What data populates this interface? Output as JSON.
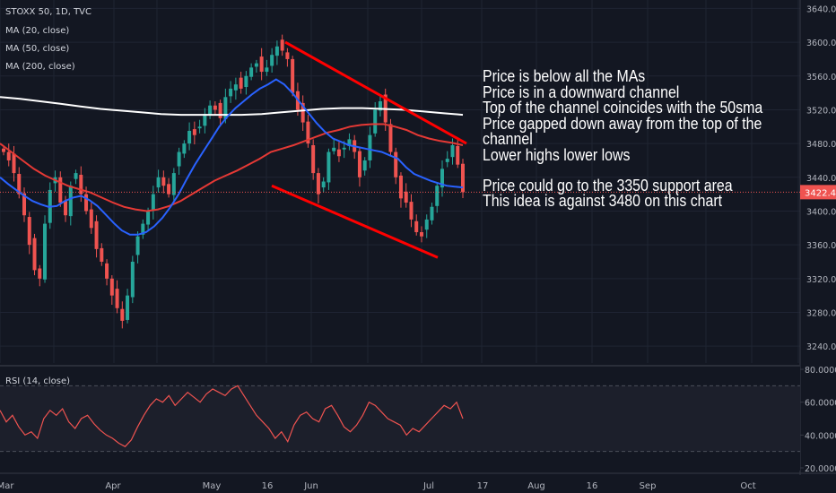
{
  "header": {
    "symbol_line": "STOXX 50, 1D, TVC",
    "ma_labels": [
      "MA (20, close)",
      "MA (50, close)",
      "MA (200, close)"
    ],
    "rsi_label": "RSI (14, close)"
  },
  "annotation": {
    "lines": [
      "Price is below all the MAs",
      "Price is in a downward channel",
      "Top of the channel coincides with the 50sma",
      "Price gapped down away from the top of the",
      "channel",
      "Lower highs lower lows",
      "",
      "Price could go to the 3350 support area",
      "This idea is against 3480 on this chart"
    ]
  },
  "colors": {
    "background": "#131722",
    "up_candle": "#26a69a",
    "down_candle": "#ef5350",
    "ma20": "#2962ff",
    "ma50": "#e53935",
    "ma200": "#ffffff",
    "channel": "#ff0000",
    "rsi_line": "#ef5350",
    "price_tag": "#ef5350"
  },
  "chart_data": [
    {
      "type": "candlestick",
      "title": "STOXX 50, 1D, TVC",
      "ylim": [
        3220,
        3650
      ],
      "y_ticks": [
        "3640.0",
        "3600.0",
        "3560.0",
        "3520.0",
        "3480.0",
        "3440.0",
        "3400.0",
        "3360.0",
        "3320.0",
        "3280.0",
        "3240.0"
      ],
      "x_ticks": [
        "Mar",
        "Apr",
        "May",
        "16",
        "Jun",
        "Jul",
        "17",
        "Aug",
        "16",
        "Sep",
        "Oct"
      ],
      "last_price_label": "3422.4",
      "last_price": 3422.4,
      "close_path": [
        3470,
        3460,
        3445,
        3420,
        3395,
        3360,
        3330,
        3320,
        3385,
        3425,
        3440,
        3410,
        3395,
        3430,
        3445,
        3420,
        3400,
        3380,
        3355,
        3340,
        3320,
        3300,
        3285,
        3270,
        3300,
        3340,
        3370,
        3385,
        3400,
        3420,
        3440,
        3430,
        3420,
        3445,
        3470,
        3480,
        3495,
        3490,
        3500,
        3515,
        3525,
        3520,
        3510,
        3535,
        3545,
        3550,
        3545,
        3560,
        3570,
        3575,
        3565,
        3570,
        3585,
        3595,
        3590,
        3580,
        3540,
        3520,
        3505,
        3480,
        3445,
        3420,
        3435,
        3470,
        3475,
        3465,
        3475,
        3485,
        3470,
        3440,
        3460,
        3490,
        3520,
        3530,
        3505,
        3470,
        3440,
        3415,
        3410,
        3390,
        3375,
        3370,
        3390,
        3405,
        3430,
        3450,
        3462,
        3478,
        3455,
        3422.4
      ],
      "ma20": [
        3440,
        3432,
        3425,
        3418,
        3412,
        3408,
        3405,
        3406,
        3412,
        3416,
        3418,
        3413,
        3406,
        3396,
        3386,
        3377,
        3372,
        3372,
        3375,
        3382,
        3392,
        3405,
        3420,
        3438,
        3455,
        3470,
        3485,
        3500,
        3512,
        3522,
        3530,
        3538,
        3545,
        3550,
        3556,
        3550,
        3540,
        3528,
        3516,
        3504,
        3494,
        3486,
        3482,
        3478,
        3476,
        3474,
        3472,
        3470,
        3466,
        3462,
        3452,
        3444,
        3440,
        3436,
        3433,
        3430,
        3429,
        3428
      ],
      "ma50": [
        3480,
        3470,
        3460,
        3450,
        3442,
        3436,
        3430,
        3426,
        3422,
        3416,
        3410,
        3405,
        3402,
        3400,
        3402,
        3406,
        3412,
        3420,
        3428,
        3436,
        3442,
        3448,
        3455,
        3462,
        3470,
        3474,
        3478,
        3483,
        3488,
        3493,
        3496,
        3500,
        3502,
        3503,
        3503,
        3500,
        3496,
        3490,
        3486,
        3483,
        3481,
        3478
      ],
      "ma200": [
        3535,
        3533,
        3530,
        3527,
        3524,
        3521,
        3519,
        3517,
        3515,
        3514,
        3514,
        3514,
        3514,
        3515,
        3517,
        3519,
        3521,
        3522,
        3522,
        3521,
        3520,
        3518,
        3516,
        3514
      ],
      "channel_upper": [
        [
          3600
        ],
        [
          3480
        ]
      ],
      "channel_lower": [
        [
          3430
        ],
        [
          3345
        ]
      ]
    },
    {
      "type": "line",
      "title": "RSI (14, close)",
      "ylim": [
        20,
        80
      ],
      "y_ticks": [
        "80.0000",
        "60.0000",
        "40.0000",
        "20.0000"
      ],
      "values": [
        55,
        48,
        52,
        45,
        40,
        42,
        38,
        50,
        55,
        52,
        56,
        48,
        44,
        50,
        52,
        47,
        43,
        40,
        38,
        35,
        33,
        37,
        45,
        52,
        58,
        62,
        60,
        64,
        58,
        62,
        66,
        63,
        60,
        65,
        68,
        66,
        64,
        68,
        70,
        64,
        58,
        52,
        48,
        44,
        38,
        42,
        36,
        46,
        52,
        54,
        50,
        48,
        56,
        58,
        52,
        45,
        42,
        46,
        52,
        60,
        58,
        54,
        50,
        48,
        46,
        40,
        44,
        42,
        46,
        50,
        54,
        58,
        56,
        60,
        50
      ]
    }
  ]
}
